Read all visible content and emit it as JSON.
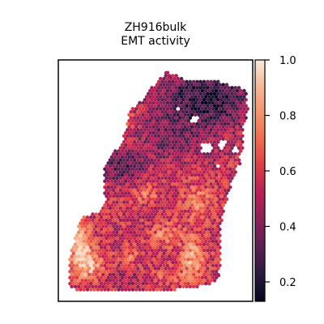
{
  "chart_data": {
    "type": "heatmap",
    "title_line1": "ZH916bulk",
    "title_line2": "EMT activity",
    "xlabel": "",
    "ylabel": "",
    "axes_ticks": "none",
    "colorbar": {
      "range": [
        0.13,
        1.0
      ],
      "ticks": [
        0.2,
        0.4,
        0.6,
        0.8,
        1.0
      ],
      "tick_labels": [
        "0.2",
        "0.4",
        "0.6",
        "0.8",
        "1.0"
      ],
      "colormap": "rocket",
      "stops": [
        "#03051a",
        "#2b1a3e",
        "#5a1f51",
        "#8a2159",
        "#b81f56",
        "#dd3b46",
        "#ef6a4a",
        "#f4936b",
        "#f6b895",
        "#faebdd"
      ]
    },
    "spots": {
      "description_of_regions": "hexagonal spatial spots forming a tissue section",
      "dark_region": "upper right, values ~0.15-0.35",
      "mid_region": "center, values ~0.4-0.6",
      "high_region": "lower left and lower center, values ~0.7-0.95"
    }
  }
}
